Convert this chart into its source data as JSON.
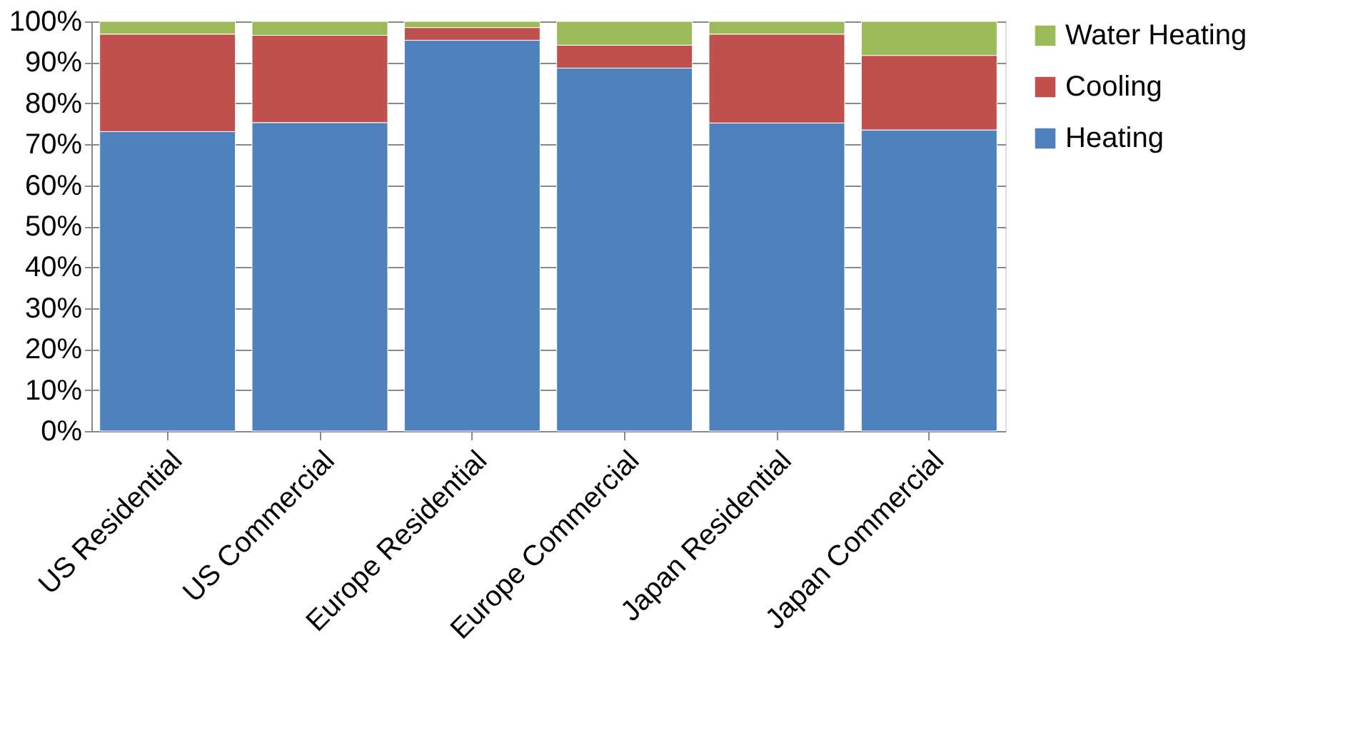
{
  "chart_data": {
    "type": "bar",
    "stacked": true,
    "categories": [
      "US Residential",
      "US Commercial",
      "Europe Residential",
      "Europe Commercial",
      "Japan Residential",
      "Japan Commercial"
    ],
    "series": [
      {
        "name": "Heating",
        "color": "#4f81bd",
        "values": [
          73.1,
          75.3,
          95.4,
          88.6,
          75.2,
          73.5
        ]
      },
      {
        "name": "Cooling",
        "color": "#c0504d",
        "values": [
          23.8,
          21.3,
          3.1,
          5.6,
          21.7,
          18.2
        ]
      },
      {
        "name": "Water Heating",
        "color": "#9bbb59",
        "values": [
          3.1,
          3.4,
          1.5,
          5.8,
          3.1,
          8.3
        ]
      }
    ],
    "ylim": [
      0,
      100
    ],
    "yticks": [
      {
        "value": 0,
        "label": "0%"
      },
      {
        "value": 10,
        "label": "10%"
      },
      {
        "value": 20,
        "label": "20%"
      },
      {
        "value": 30,
        "label": "30%"
      },
      {
        "value": 40,
        "label": "40%"
      },
      {
        "value": 50,
        "label": "50%"
      },
      {
        "value": 60,
        "label": "60%"
      },
      {
        "value": 70,
        "label": "70%"
      },
      {
        "value": 80,
        "label": "80%"
      },
      {
        "value": 90,
        "label": "90%"
      },
      {
        "value": 100,
        "label": "100%"
      }
    ],
    "grid": "y",
    "legend": "right"
  }
}
